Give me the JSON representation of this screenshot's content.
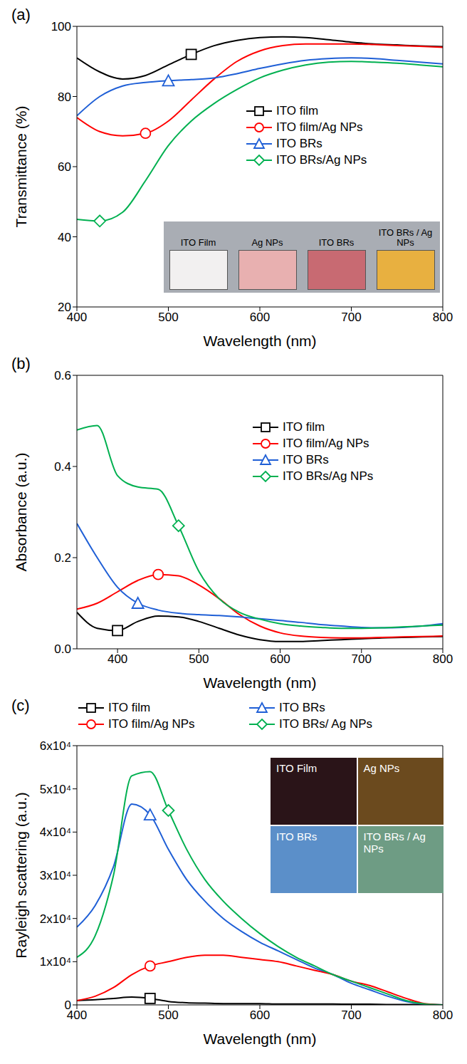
{
  "chart_data": [
    {
      "type": "line",
      "panel_label": "(a)",
      "x_label": "Wavelength (nm)",
      "y_label": "Transmittance (%)",
      "x": [
        400,
        425,
        450,
        475,
        500,
        525,
        550,
        575,
        600,
        625,
        650,
        675,
        700,
        725,
        750,
        775,
        800
      ],
      "xlim": [
        400,
        800
      ],
      "xticks": [
        400,
        500,
        600,
        700,
        800
      ],
      "ylim": [
        20,
        100
      ],
      "yticks": [
        20,
        40,
        60,
        80,
        100
      ],
      "legend": "upper right",
      "series": [
        {
          "name": "ITO film",
          "color": "#000000",
          "marker": "square",
          "values": [
            91,
            87,
            85,
            86,
            89,
            92,
            94.5,
            96,
            96.8,
            97,
            96.8,
            96.2,
            95.5,
            95,
            94.7,
            94.4,
            94.2
          ]
        },
        {
          "name": "ITO film/Ag NPs",
          "color": "#ff0000",
          "marker": "circle",
          "values": [
            74,
            70,
            68.8,
            69.5,
            73,
            79,
            85,
            90,
            93,
            94.5,
            95,
            95,
            95,
            94.8,
            94.5,
            94.3,
            94
          ]
        },
        {
          "name": "ITO BRs",
          "color": "#1f5fd6",
          "marker": "triangle",
          "values": [
            74.5,
            80,
            83,
            84,
            84.5,
            84.8,
            85.3,
            86.5,
            88,
            89.3,
            90.3,
            90.8,
            91,
            90.8,
            90.3,
            89.8,
            89.3
          ]
        },
        {
          "name": "ITO BRs/Ag NPs",
          "color": "#00b050",
          "marker": "diamond",
          "values": [
            45,
            44.5,
            47,
            56,
            66,
            73,
            78,
            82,
            85.3,
            87.5,
            89,
            89.8,
            90,
            89.8,
            89.5,
            89,
            88.5
          ]
        }
      ],
      "inset": {
        "labels": [
          "ITO Film",
          "Ag NPs",
          "ITO BRs",
          "ITO BRs / Ag NPs"
        ],
        "colors": [
          "#f2f0f0",
          "#e8b0b0",
          "#c86a72",
          "#e8b040"
        ]
      }
    },
    {
      "type": "line",
      "panel_label": "(b)",
      "x_label": "Wavelength (nm)",
      "y_label": "Absorbance (a.u.)",
      "x": [
        350,
        375,
        400,
        425,
        450,
        475,
        500,
        525,
        550,
        575,
        600,
        625,
        650,
        675,
        700,
        725,
        750,
        775,
        800
      ],
      "xlim": [
        350,
        800
      ],
      "xticks": [
        400,
        500,
        600,
        700,
        800
      ],
      "ylim": [
        0,
        0.6
      ],
      "yticks": [
        {
          "value": 0,
          "label": "0.0"
        },
        0.2,
        0.4,
        0.6
      ],
      "legend": "upper right",
      "series": [
        {
          "name": "ITO film",
          "color": "#000000",
          "marker": "square",
          "values": [
            0.08,
            0.045,
            0.04,
            0.06,
            0.072,
            0.07,
            0.06,
            0.045,
            0.03,
            0.02,
            0.016,
            0.016,
            0.018,
            0.02,
            0.022,
            0.024,
            0.025,
            0.026,
            0.027
          ]
        },
        {
          "name": "ITO film/Ag NPs",
          "color": "#ff0000",
          "marker": "circle",
          "values": [
            0.087,
            0.1,
            0.125,
            0.15,
            0.163,
            0.16,
            0.14,
            0.11,
            0.075,
            0.05,
            0.035,
            0.028,
            0.025,
            0.024,
            0.024,
            0.025,
            0.026,
            0.027,
            0.028
          ]
        },
        {
          "name": "ITO BRs",
          "color": "#1f5fd6",
          "marker": "triangle",
          "values": [
            0.275,
            0.2,
            0.135,
            0.1,
            0.085,
            0.078,
            0.075,
            0.073,
            0.07,
            0.066,
            0.062,
            0.058,
            0.053,
            0.05,
            0.047,
            0.046,
            0.047,
            0.05,
            0.055
          ]
        },
        {
          "name": "ITO BRs/Ag NPs",
          "color": "#00b050",
          "marker": "diamond",
          "values": [
            0.48,
            0.49,
            0.38,
            0.355,
            0.35,
            0.27,
            0.17,
            0.11,
            0.08,
            0.065,
            0.055,
            0.05,
            0.047,
            0.045,
            0.045,
            0.046,
            0.048,
            0.05,
            0.052
          ]
        }
      ]
    },
    {
      "type": "line",
      "panel_label": "(c)",
      "x_label": "Wavelength (nm)",
      "y_label": "Rayleigh scattering (a.u.)",
      "x": [
        400,
        420,
        440,
        460,
        480,
        500,
        520,
        540,
        560,
        580,
        600,
        620,
        640,
        660,
        680,
        700,
        720,
        740,
        760,
        780,
        800
      ],
      "xlim": [
        400,
        800
      ],
      "xticks": [
        400,
        500,
        600,
        700,
        800
      ],
      "ylim": [
        0,
        60000
      ],
      "yticks": [
        0,
        {
          "value": 10000,
          "label": "1x10⁴"
        },
        {
          "value": 20000,
          "label": "2x10⁴"
        },
        {
          "value": 30000,
          "label": "3x10⁴"
        },
        {
          "value": 40000,
          "label": "4x10⁴"
        },
        {
          "value": 50000,
          "label": "5x10⁴"
        },
        {
          "value": 60000,
          "label": "6x10⁴"
        }
      ],
      "legend": "top",
      "series": [
        {
          "name": "ITO film",
          "color": "#000000",
          "marker": "square",
          "values": [
            1000,
            1200,
            1500,
            1800,
            1500,
            800,
            500,
            400,
            300,
            300,
            300,
            200,
            200,
            200,
            200,
            150,
            150,
            100,
            100,
            100,
            0
          ]
        },
        {
          "name": "ITO BRs",
          "color": "#1f5fd6",
          "marker": "triangle",
          "values": [
            18000,
            23000,
            32000,
            46500,
            44000,
            36000,
            29000,
            24000,
            20000,
            17000,
            14500,
            12500,
            10500,
            8500,
            7000,
            5000,
            3500,
            2000,
            800,
            200,
            0
          ]
        },
        {
          "name": "ITO film/Ag NPs",
          "color": "#ff0000",
          "marker": "circle",
          "values": [
            1000,
            2000,
            4000,
            7000,
            9000,
            10000,
            11000,
            11500,
            11500,
            11000,
            10500,
            10000,
            9000,
            8000,
            7000,
            5500,
            4500,
            3000,
            1500,
            300,
            0
          ]
        },
        {
          "name": "ITO BRs/ Ag NPs",
          "color": "#00b050",
          "marker": "diamond",
          "values": [
            11000,
            16000,
            30000,
            53000,
            54000,
            45000,
            36000,
            29000,
            24000,
            20000,
            16500,
            13500,
            11000,
            9000,
            7000,
            5500,
            4000,
            2500,
            1000,
            200,
            0
          ]
        }
      ],
      "inset": {
        "labels": [
          "ITO Film",
          "Ag NPs",
          "ITO BRs",
          "ITO BRs / Ag NPs"
        ],
        "colors": [
          "#2a1418",
          "#6b4a1e",
          "#5b8fc9",
          "#6e9c84"
        ]
      }
    }
  ]
}
